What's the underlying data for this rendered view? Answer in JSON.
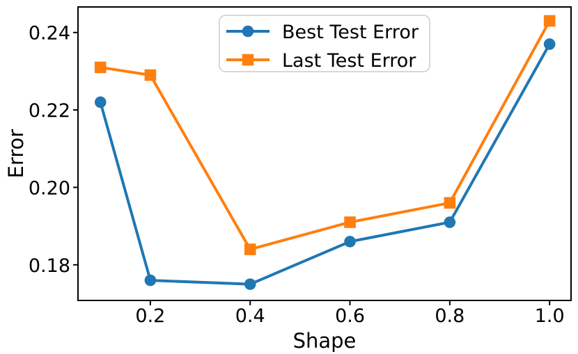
{
  "chart_data": {
    "type": "line",
    "title": "",
    "xlabel": "Shape",
    "ylabel": "Error",
    "x": [
      0.1,
      0.2,
      0.4,
      0.6,
      0.8,
      1.0
    ],
    "series": [
      {
        "name": "Best Test Error",
        "marker": "circle",
        "color": "#1f77b4",
        "values": [
          0.222,
          0.176,
          0.175,
          0.186,
          0.191,
          0.237
        ]
      },
      {
        "name": "Last Test Error",
        "marker": "square",
        "color": "#ff7f0e",
        "values": [
          0.231,
          0.229,
          0.184,
          0.191,
          0.196,
          0.243
        ]
      }
    ],
    "xlim": [
      0.055,
      1.043
    ],
    "ylim": [
      0.1708,
      0.2466
    ],
    "x_ticks": {
      "values": [
        0.2,
        0.4,
        0.6,
        0.8,
        1.0
      ],
      "labels": [
        "0.2",
        "0.4",
        "0.6",
        "0.8",
        "1.0"
      ]
    },
    "y_ticks": {
      "values": [
        0.18,
        0.2,
        0.22,
        0.24
      ],
      "labels": [
        "0.18",
        "0.20",
        "0.22",
        "0.24"
      ]
    },
    "grid": false,
    "legend_position": "upper center",
    "axis_color": "#000000",
    "legend_border_color": "#cccccc",
    "background_color": "#ffffff"
  }
}
